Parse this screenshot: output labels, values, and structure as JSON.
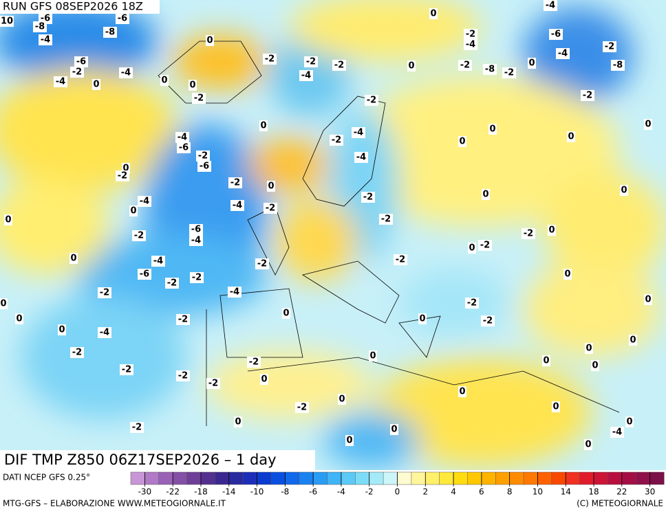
{
  "header": {
    "run": "RUN GFS 08SEP2026 18Z"
  },
  "map": {
    "title": "DIF TMP Z850 06Z17SEP2026 – 1 day",
    "contour_labels": [
      10,
      -6,
      -6,
      -8,
      -8,
      -4,
      -6,
      -2,
      -4,
      -4,
      0,
      0,
      0,
      -2,
      0,
      -2,
      -2,
      -4,
      -2,
      0,
      0,
      -2,
      -4,
      -2,
      -8,
      -2,
      0,
      -4,
      -6,
      -4,
      -2,
      -8,
      -2,
      0,
      0,
      0,
      0,
      -2,
      -4,
      -2,
      -4,
      0,
      -4,
      -6,
      -2,
      -6,
      0,
      -2,
      -2,
      0,
      -4,
      -2,
      -4,
      0,
      0,
      -2,
      -2,
      0,
      0,
      -6,
      -4,
      -2,
      0,
      -2,
      -2,
      0,
      -2,
      0,
      -4,
      -6,
      -2,
      -2,
      -2,
      0,
      -2,
      -4,
      0,
      0,
      0,
      -2,
      0,
      -2,
      -2,
      0,
      0,
      -4,
      0,
      -2,
      0,
      0,
      0,
      0,
      -2,
      -2,
      -2,
      0,
      -2,
      0,
      0,
      -2,
      0,
      0,
      -2,
      0,
      0,
      -4,
      0,
      0
    ]
  },
  "legend": {
    "source": "DATI NCEP GFS 0.25°",
    "colors": [
      "#c896d6",
      "#b07ac6",
      "#9a62b6",
      "#8450a6",
      "#6e3e98",
      "#54308e",
      "#3a2890",
      "#2a2aa0",
      "#1c2eb8",
      "#0a3ad0",
      "#0a50e0",
      "#1068ea",
      "#1a82f0",
      "#2a9cf4",
      "#40b4f6",
      "#5ccaf6",
      "#7cdcf6",
      "#a4eaf8",
      "#ccf6fa",
      "#fffbd0",
      "#fff59c",
      "#fff06c",
      "#ffe83c",
      "#ffdc10",
      "#ffc800",
      "#ffb400",
      "#ffa000",
      "#ff8c00",
      "#ff7800",
      "#ff6000",
      "#f84800",
      "#f03020",
      "#e01c2c",
      "#cc1436",
      "#b8103e",
      "#a40e44",
      "#90104a",
      "#7c1048"
    ],
    "ticks": [
      -30,
      -22,
      -18,
      -14,
      -10,
      -8,
      -6,
      -4,
      -2,
      0,
      2,
      4,
      6,
      8,
      10,
      14,
      18,
      22,
      30
    ]
  },
  "footer": {
    "left": "MTG-GFS – ELABORAZIONE WWW.METEOGIORNALE.IT",
    "right": "(C) METEOGIORNALE"
  }
}
